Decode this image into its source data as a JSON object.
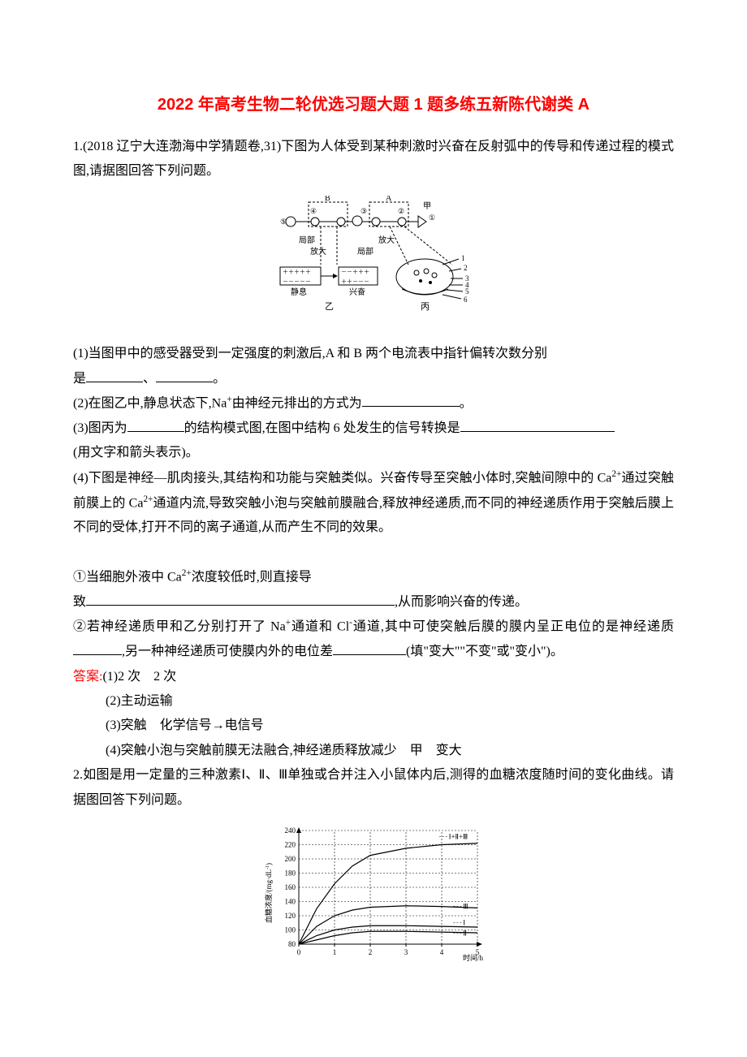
{
  "title": "2022 年高考生物二轮优选习题大题 1 题多练五新陈代谢类 A",
  "q1": {
    "stem": "1.(2018 辽宁大连渤海中学猜题卷,31)下图为人体受到某种刺激时兴奋在反射弧中的传导和传递过程的模式图,请据图回答下列问题。",
    "diagram": {
      "labels": {
        "B": "B",
        "A": "A",
        "jia": "甲",
        "n5": "⑤",
        "n4": "④",
        "n3": "③",
        "n2": "②",
        "n1": "①",
        "jubu1": "局部",
        "fangda1": "放大",
        "jubu2": "局部",
        "fangda2": "放大",
        "jingxi": "静息",
        "xingfen": "兴奋",
        "yi": "乙",
        "bing": "丙",
        "s1": "1",
        "s2": "2",
        "s3": "3",
        "s4": "4",
        "s5": "5",
        "s6": "6"
      },
      "stroke": "#000000",
      "fontsize": 10
    },
    "sub1_a": "(1)当图甲中的感受器受到一定强度的刺激后,A 和 B 两个电流表中指针偏转次数分别",
    "sub1_b": "是",
    "sub1_sep": "、",
    "sub1_period": "。",
    "sub2_a": "(2)在图乙中,静息状态下,Na",
    "sub2_sup": "+",
    "sub2_b": "由神经元排出的方式为",
    "sub2_period": "。",
    "sub3_a": "(3)图丙为",
    "sub3_b": "的结构模式图,在图中结构 6 处发生的信号转换是",
    "sub3_c": "(用文字和箭头表示)。",
    "sub4": "(4)下图是神经—肌肉接头,其结构和功能与突触类似。兴奋传导至突触小体时,突触间隙中的 Ca",
    "sub4_sup1": "2+",
    "sub4_b": "通过突触前膜上的 Ca",
    "sub4_sup2": "2+",
    "sub4_c": "通道内流,导致突触小泡与突触前膜融合,释放神经递质,而不同的神经递质作用于突触后膜上不同的受体,打开不同的离子通道,从而产生不同的效果。",
    "sub4_1a": "①当细胞外液中 Ca",
    "sub4_1sup": "2+",
    "sub4_1b": "浓度较低时,则直接导",
    "sub4_1c": "致",
    "sub4_1d": ",从而影响兴奋的传递。",
    "sub4_2a": "②若神经递质甲和乙分别打开了 Na",
    "sub4_2sup1": "+",
    "sub4_2b": "通道和 Cl",
    "sub4_2sup2": "-",
    "sub4_2c": "通道,其中可使突触后膜的膜内呈正电位的是神经递质",
    "sub4_2d": ",另一种神经递质可使膜内外的电位差",
    "sub4_2e": "(填\"变大\"\"不变\"或\"变小\")。",
    "ans_label": "答案:",
    "ans1": "(1)2 次　2 次",
    "ans2": "(2)主动运输",
    "ans3": "(3)突触　化学信号→电信号",
    "ans4": "(4)突触小泡与突触前膜无法融合,神经递质释放减少　甲　变大"
  },
  "q2": {
    "stem": "2.如图是用一定量的三种激素Ⅰ、Ⅱ、Ⅲ单独或合并注入小鼠体内后,测得的血糖浓度随时间的变化曲线。请据图回答下列问题。",
    "chart": {
      "type": "line",
      "ylabel_parts": [
        "血糖浓度/(mg·dL",
        "-1",
        ")"
      ],
      "xlabel": "时间/h",
      "ylim": [
        80,
        240
      ],
      "xlim": [
        0,
        5
      ],
      "yticks": [
        80,
        100,
        120,
        140,
        160,
        180,
        200,
        220,
        240
      ],
      "xticks": [
        0,
        1,
        2,
        3,
        4,
        5
      ],
      "series": [
        {
          "label": "Ⅰ+Ⅱ+Ⅲ",
          "points": [
            [
              0,
              80
            ],
            [
              0.5,
              130
            ],
            [
              1,
              165
            ],
            [
              1.5,
              190
            ],
            [
              2,
              205
            ],
            [
              3,
              215
            ],
            [
              4,
              220
            ],
            [
              5,
              222
            ]
          ],
          "label_pos": [
            4.2,
            228
          ]
        },
        {
          "label": "Ⅲ",
          "points": [
            [
              0,
              80
            ],
            [
              0.5,
              105
            ],
            [
              1,
              120
            ],
            [
              1.5,
              128
            ],
            [
              2,
              132
            ],
            [
              3,
              134
            ],
            [
              4,
              133
            ],
            [
              5,
              131
            ]
          ],
          "label_pos": [
            4.6,
            130
          ]
        },
        {
          "label": "Ⅰ",
          "points": [
            [
              0,
              80
            ],
            [
              0.5,
              92
            ],
            [
              1,
              100
            ],
            [
              1.5,
              104
            ],
            [
              2,
              106
            ],
            [
              3,
              106
            ],
            [
              4,
              105
            ],
            [
              5,
              104
            ]
          ],
          "label_pos": [
            4.6,
            107
          ]
        },
        {
          "label": "Ⅱ",
          "points": [
            [
              0,
              80
            ],
            [
              0.5,
              86
            ],
            [
              1,
              92
            ],
            [
              1.5,
              96
            ],
            [
              2,
              98
            ],
            [
              3,
              98
            ],
            [
              4,
              97
            ],
            [
              5,
              96
            ]
          ],
          "label_pos": [
            4.6,
            92
          ]
        }
      ],
      "axis_color": "#000000",
      "grid_color": "#000000",
      "fontsize": 9,
      "background_color": "#ffffff"
    }
  }
}
